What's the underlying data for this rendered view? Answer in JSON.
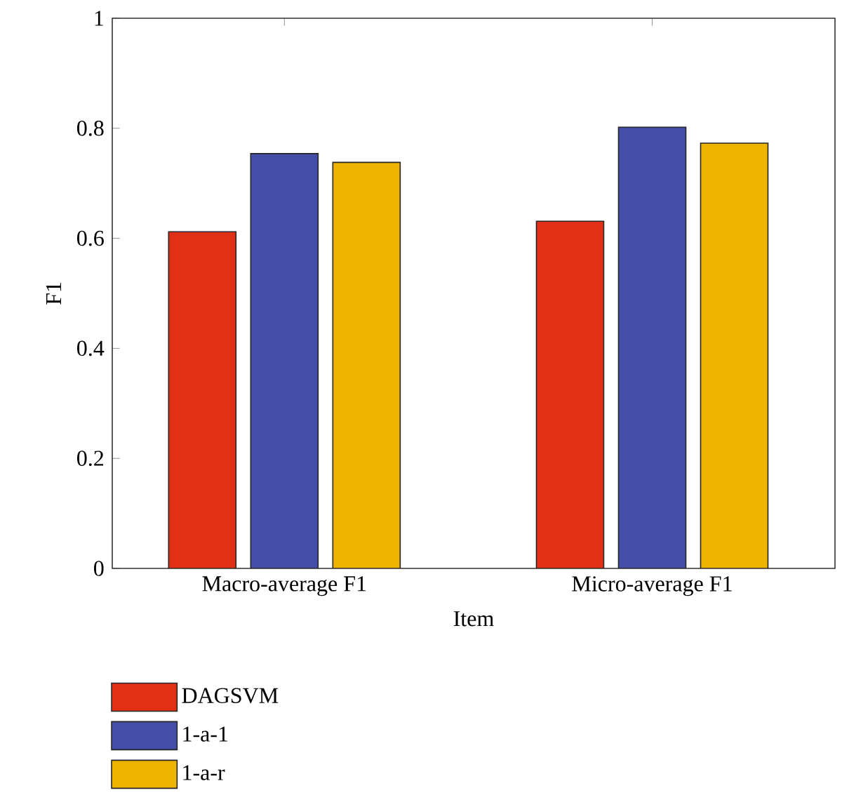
{
  "chart_data": {
    "type": "bar",
    "xlabel": "Item",
    "ylabel": "F1",
    "categories": [
      "Macro-average F1",
      "Micro-average F1"
    ],
    "series": [
      {
        "name": "DAGSVM",
        "color": "#e03116",
        "values": [
          0.612,
          0.631
        ]
      },
      {
        "name": "1-a-1",
        "color": "#444ea8",
        "values": [
          0.754,
          0.802
        ]
      },
      {
        "name": "1-a-r",
        "color": "#eeb400",
        "values": [
          0.738,
          0.773
        ]
      }
    ],
    "ylim": [
      0,
      1
    ],
    "yticks": [
      0,
      0.2,
      0.4,
      0.6,
      0.8,
      1
    ],
    "legend": "bottom left",
    "grid": false
  }
}
